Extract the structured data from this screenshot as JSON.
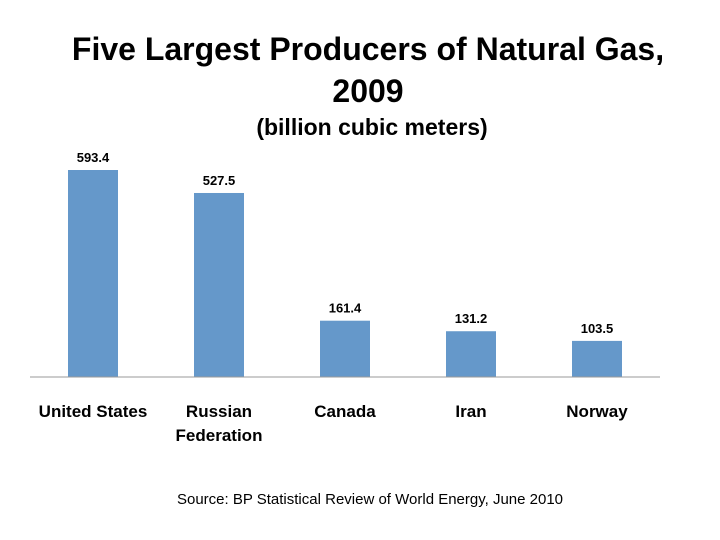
{
  "chart_data": {
    "type": "bar",
    "title_line1": "Five Largest Producers of Natural Gas,",
    "title_line2": "2009",
    "subtitle": "(billion cubic meters)",
    "categories": [
      [
        "United States"
      ],
      [
        "Russian",
        "Federation"
      ],
      [
        "Canada"
      ],
      [
        "Iran"
      ],
      [
        "Norway"
      ]
    ],
    "values": [
      593.4,
      527.5,
      161.4,
      131.2,
      103.5
    ],
    "value_labels": [
      "593.4",
      "527.5",
      "161.4",
      "131.2",
      "103.5"
    ],
    "ylim": [
      0,
      593.4
    ],
    "grid": false,
    "bar_color": "#6598ca",
    "axis_color": "#9a9a9a"
  },
  "source": "Source: BP Statistical Review of World Energy, June 2010"
}
